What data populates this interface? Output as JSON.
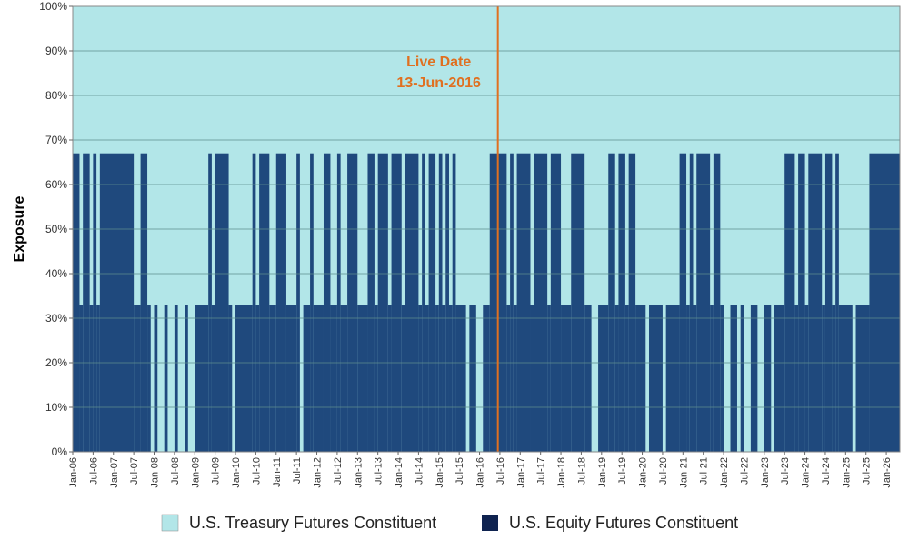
{
  "chart_data": {
    "type": "area",
    "ylabel": "Exposure",
    "ylim": [
      0,
      100
    ],
    "y_unit": "%",
    "y_ticks": [
      "0%",
      "10%",
      "20%",
      "30%",
      "40%",
      "50%",
      "60%",
      "70%",
      "80%",
      "90%",
      "100%"
    ],
    "x_range": [
      "2006-01",
      "2026-05"
    ],
    "x_ticks": [
      "Jan-06",
      "Jul-06",
      "Jan-07",
      "Jul-07",
      "Jan-08",
      "Jul-08",
      "Jan-09",
      "Jul-09",
      "Jan-10",
      "Jul-10",
      "Jan-11",
      "Jul-11",
      "Jan-12",
      "Jul-12",
      "Jan-13",
      "Jul-13",
      "Jan-14",
      "Jul-14",
      "Jan-15",
      "Jul-15",
      "Jan-16",
      "Jul-16",
      "Jan-17",
      "Jul-17",
      "Jan-18",
      "Jul-18",
      "Jan-19",
      "Jul-19",
      "Jan-20",
      "Jul-20",
      "Jan-21",
      "Jul-21",
      "Jan-22",
      "Jul-22",
      "Jan-23",
      "Jul-23",
      "Jan-24",
      "Jul-24",
      "Jan-25",
      "Jul-25",
      "Jan-26"
    ],
    "grid": true,
    "legend_placement": "bottom",
    "annotation": {
      "line1": "Live Date",
      "line2": "13-Jun-2016",
      "date": "2016-06-13",
      "color": "#E07020"
    },
    "series": [
      {
        "name": "U.S. Treasury Futures Constituent",
        "color": "#B2E6E8",
        "note_values": "remainder to 100%"
      },
      {
        "name": "U.S. Equity Futures Constituent",
        "color": "#1F497D",
        "segments": [
          [
            "2006-01",
            67
          ],
          [
            "2006-03",
            33
          ],
          [
            "2006-04",
            67
          ],
          [
            "2006-06",
            33
          ],
          [
            "2006-07",
            67
          ],
          [
            "2006-08",
            33
          ],
          [
            "2006-09",
            67
          ],
          [
            "2007-07",
            33
          ],
          [
            "2007-09",
            67
          ],
          [
            "2007-11",
            33
          ],
          [
            "2007-12",
            0
          ],
          [
            "2008-01",
            33
          ],
          [
            "2008-02",
            0
          ],
          [
            "2008-04",
            33
          ],
          [
            "2008-05",
            0
          ],
          [
            "2008-07",
            33
          ],
          [
            "2008-08",
            0
          ],
          [
            "2008-10",
            33
          ],
          [
            "2008-11",
            0
          ],
          [
            "2009-01",
            33
          ],
          [
            "2009-05",
            67
          ],
          [
            "2009-06",
            33
          ],
          [
            "2009-07",
            67
          ],
          [
            "2009-11",
            33
          ],
          [
            "2009-12",
            0
          ],
          [
            "2010-01",
            33
          ],
          [
            "2010-06",
            67
          ],
          [
            "2010-07",
            33
          ],
          [
            "2010-08",
            67
          ],
          [
            "2010-11",
            33
          ],
          [
            "2011-01",
            67
          ],
          [
            "2011-04",
            33
          ],
          [
            "2011-07",
            67
          ],
          [
            "2011-08",
            0
          ],
          [
            "2011-09",
            33
          ],
          [
            "2011-11",
            67
          ],
          [
            "2011-12",
            33
          ],
          [
            "2012-03",
            67
          ],
          [
            "2012-05",
            33
          ],
          [
            "2012-07",
            67
          ],
          [
            "2012-08",
            33
          ],
          [
            "2012-10",
            67
          ],
          [
            "2013-01",
            33
          ],
          [
            "2013-04",
            67
          ],
          [
            "2013-06",
            33
          ],
          [
            "2013-07",
            67
          ],
          [
            "2013-10",
            33
          ],
          [
            "2013-11",
            67
          ],
          [
            "2014-02",
            33
          ],
          [
            "2014-03",
            67
          ],
          [
            "2014-07",
            33
          ],
          [
            "2014-08",
            67
          ],
          [
            "2014-09",
            33
          ],
          [
            "2014-10",
            67
          ],
          [
            "2014-12",
            33
          ],
          [
            "2015-01",
            67
          ],
          [
            "2015-02",
            33
          ],
          [
            "2015-03",
            67
          ],
          [
            "2015-04",
            33
          ],
          [
            "2015-05",
            67
          ],
          [
            "2015-06",
            33
          ],
          [
            "2015-09",
            0
          ],
          [
            "2015-10",
            33
          ],
          [
            "2015-12",
            0
          ],
          [
            "2016-02",
            33
          ],
          [
            "2016-04",
            67
          ],
          [
            "2016-09",
            33
          ],
          [
            "2016-10",
            67
          ],
          [
            "2016-11",
            33
          ],
          [
            "2016-12",
            67
          ],
          [
            "2017-04",
            33
          ],
          [
            "2017-05",
            67
          ],
          [
            "2017-09",
            33
          ],
          [
            "2017-10",
            67
          ],
          [
            "2018-01",
            33
          ],
          [
            "2018-04",
            67
          ],
          [
            "2018-08",
            33
          ],
          [
            "2018-10",
            0
          ],
          [
            "2018-12",
            33
          ],
          [
            "2019-03",
            67
          ],
          [
            "2019-05",
            33
          ],
          [
            "2019-06",
            67
          ],
          [
            "2019-08",
            33
          ],
          [
            "2019-09",
            67
          ],
          [
            "2019-11",
            33
          ],
          [
            "2020-02",
            0
          ],
          [
            "2020-03",
            33
          ],
          [
            "2020-07",
            0
          ],
          [
            "2020-08",
            33
          ],
          [
            "2020-12",
            67
          ],
          [
            "2021-02",
            33
          ],
          [
            "2021-03",
            67
          ],
          [
            "2021-04",
            33
          ],
          [
            "2021-05",
            67
          ],
          [
            "2021-09",
            33
          ],
          [
            "2021-10",
            67
          ],
          [
            "2021-12",
            33
          ],
          [
            "2022-01",
            0
          ],
          [
            "2022-03",
            33
          ],
          [
            "2022-05",
            0
          ],
          [
            "2022-06",
            33
          ],
          [
            "2022-07",
            0
          ],
          [
            "2022-09",
            33
          ],
          [
            "2022-11",
            0
          ],
          [
            "2023-01",
            33
          ],
          [
            "2023-03",
            0
          ],
          [
            "2023-04",
            33
          ],
          [
            "2023-07",
            67
          ],
          [
            "2023-10",
            33
          ],
          [
            "2023-11",
            67
          ],
          [
            "2024-01",
            33
          ],
          [
            "2024-02",
            67
          ],
          [
            "2024-06",
            33
          ],
          [
            "2024-07",
            67
          ],
          [
            "2024-09",
            33
          ],
          [
            "2024-10",
            67
          ],
          [
            "2024-11",
            33
          ],
          [
            "2025-03",
            0
          ],
          [
            "2025-04",
            33
          ],
          [
            "2025-08",
            67
          ],
          [
            "2026-05",
            67
          ]
        ]
      }
    ]
  }
}
